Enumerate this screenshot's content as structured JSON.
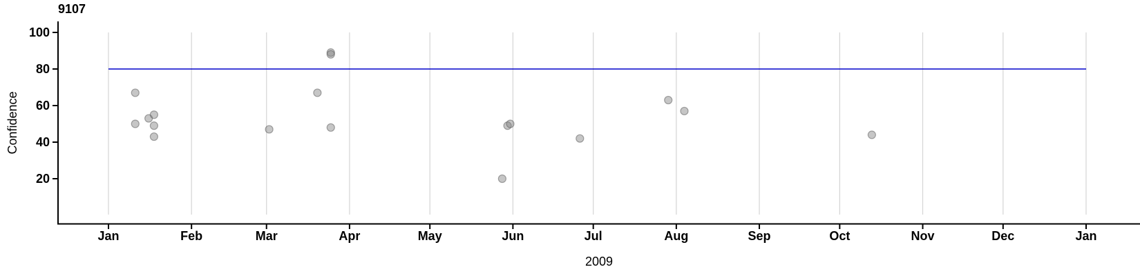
{
  "chart_data": {
    "type": "scatter",
    "title": "9107",
    "xlabel": "2009",
    "ylabel": "Confidence",
    "x_axis_type": "date",
    "x_range": [
      "2009-01-01",
      "2010-01-01"
    ],
    "x_tick_labels": [
      "Jan",
      "Feb",
      "Mar",
      "Apr",
      "May",
      "Jun",
      "Jul",
      "Aug",
      "Sep",
      "Oct",
      "Nov",
      "Dec",
      "Jan"
    ],
    "y_ticks": [
      20,
      40,
      60,
      80,
      100
    ],
    "ylim": [
      0,
      100
    ],
    "grid": "vertical gridlines at each month start",
    "legend": "none",
    "reference_line": {
      "y": 80,
      "color": "#0000CC"
    },
    "points": [
      {
        "date": "2009-01-11",
        "value": 67
      },
      {
        "date": "2009-01-11",
        "value": 50
      },
      {
        "date": "2009-01-16",
        "value": 53
      },
      {
        "date": "2009-01-18",
        "value": 55
      },
      {
        "date": "2009-01-18",
        "value": 49
      },
      {
        "date": "2009-01-18",
        "value": 43
      },
      {
        "date": "2009-03-02",
        "value": 47
      },
      {
        "date": "2009-03-20",
        "value": 67
      },
      {
        "date": "2009-03-25",
        "value": 89
      },
      {
        "date": "2009-03-25",
        "value": 88
      },
      {
        "date": "2009-03-25",
        "value": 48
      },
      {
        "date": "2009-05-28",
        "value": 20
      },
      {
        "date": "2009-05-30",
        "value": 49
      },
      {
        "date": "2009-05-31",
        "value": 50
      },
      {
        "date": "2009-06-26",
        "value": 42
      },
      {
        "date": "2009-07-29",
        "value": 63
      },
      {
        "date": "2009-08-04",
        "value": 57
      },
      {
        "date": "2009-10-13",
        "value": 44
      }
    ],
    "style": {
      "point_fill": "#808080",
      "point_fill_opacity": 0.45,
      "point_stroke": "#555555",
      "point_stroke_opacity": 0.5,
      "point_radius": 5.5,
      "gridline_color": "#D4D4D4",
      "axis_color": "#000000",
      "text_color": "#000000",
      "background": "#FFFFFF"
    }
  }
}
